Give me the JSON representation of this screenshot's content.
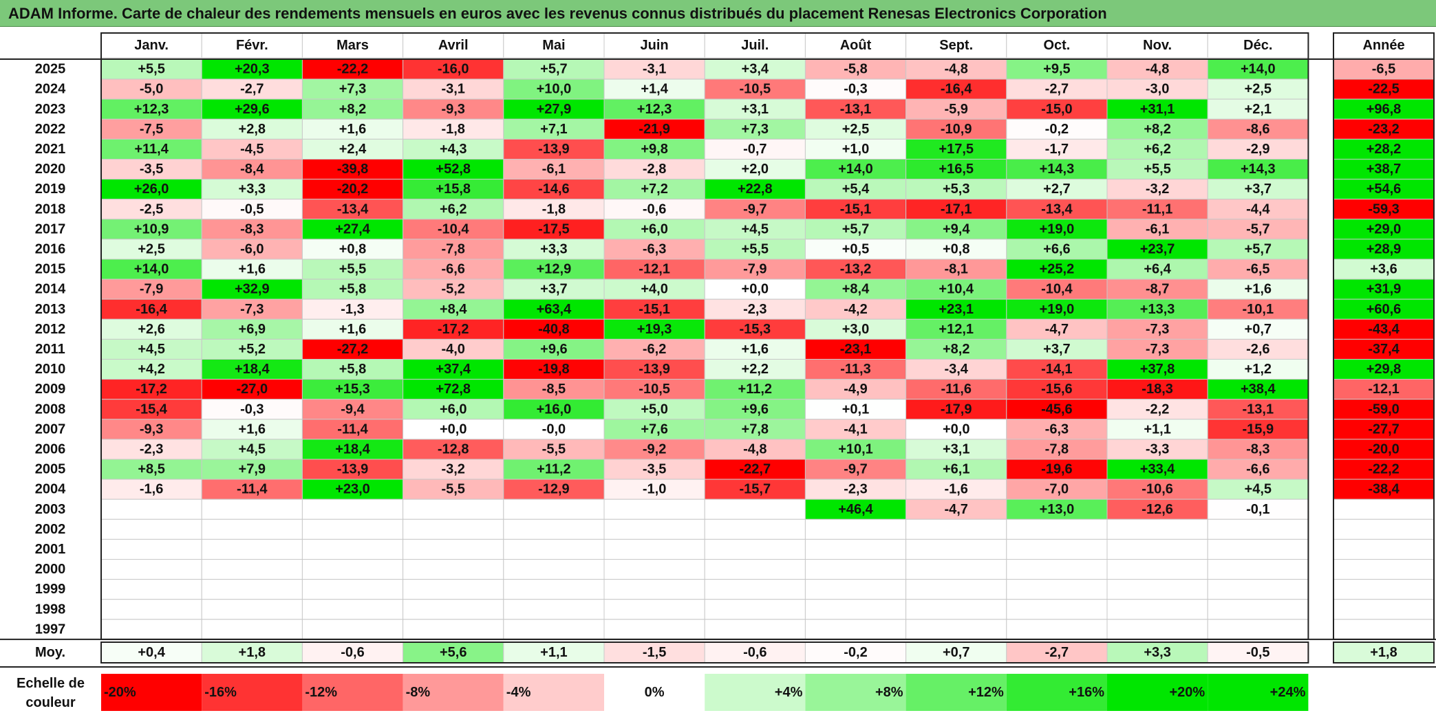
{
  "title": "ADAM Informe. Carte de chaleur des rendements mensuels en euros avec les revenus connus distribués du placement Renesas Electronics Corporation",
  "chart_data": {
    "type": "heatmap",
    "title": "ADAM Informe. Carte de chaleur des rendements mensuels en euros avec les revenus connus distribués du placement Renesas Electronics Corporation",
    "months": [
      "Janv.",
      "Févr.",
      "Mars",
      "Avril",
      "Mai",
      "Juin",
      "Juil.",
      "Août",
      "Sept.",
      "Oct.",
      "Nov.",
      "Déc."
    ],
    "year_header": "Année",
    "rows": [
      {
        "year": "2025",
        "months": [
          "+5,5",
          "+20,3",
          "-22,2",
          "-16,0",
          "+5,7",
          "-3,1",
          "+3,4",
          "-5,8",
          "-4,8",
          "+9,5",
          "-4,8",
          "+14,0"
        ],
        "annual": "-6,5"
      },
      {
        "year": "2024",
        "months": [
          "-5,0",
          "-2,7",
          "+7,3",
          "-3,1",
          "+10,0",
          "+1,4",
          "-10,5",
          "-0,3",
          "-16,4",
          "-2,7",
          "-3,0",
          "+2,5"
        ],
        "annual": "-22,5"
      },
      {
        "year": "2023",
        "months": [
          "+12,3",
          "+29,6",
          "+8,2",
          "-9,3",
          "+27,9",
          "+12,3",
          "+3,1",
          "-13,1",
          "-5,9",
          "-15,0",
          "+31,1",
          "+2,1"
        ],
        "annual": "+96,8"
      },
      {
        "year": "2022",
        "months": [
          "-7,5",
          "+2,8",
          "+1,6",
          "-1,8",
          "+7,1",
          "-21,9",
          "+7,3",
          "+2,5",
          "-10,9",
          "-0,2",
          "+8,2",
          "-8,6"
        ],
        "annual": "-23,2"
      },
      {
        "year": "2021",
        "months": [
          "+11,4",
          "-4,5",
          "+2,4",
          "+4,3",
          "-13,9",
          "+9,8",
          "-0,7",
          "+1,0",
          "+17,5",
          "-1,7",
          "+6,2",
          "-2,9"
        ],
        "annual": "+28,2"
      },
      {
        "year": "2020",
        "months": [
          "-3,5",
          "-8,4",
          "-39,8",
          "+52,8",
          "-6,1",
          "-2,8",
          "+2,0",
          "+14,0",
          "+16,5",
          "+14,3",
          "+5,5",
          "+14,3"
        ],
        "annual": "+38,7"
      },
      {
        "year": "2019",
        "months": [
          "+26,0",
          "+3,3",
          "-20,2",
          "+15,8",
          "-14,6",
          "+7,2",
          "+22,8",
          "+5,4",
          "+5,3",
          "+2,7",
          "-3,2",
          "+3,7"
        ],
        "annual": "+54,6"
      },
      {
        "year": "2018",
        "months": [
          "-2,5",
          "-0,5",
          "-13,4",
          "+6,2",
          "-1,8",
          "-0,6",
          "-9,7",
          "-15,1",
          "-17,1",
          "-13,4",
          "-11,1",
          "-4,4"
        ],
        "annual": "-59,3"
      },
      {
        "year": "2017",
        "months": [
          "+10,9",
          "-8,3",
          "+27,4",
          "-10,4",
          "-17,5",
          "+6,0",
          "+4,5",
          "+5,7",
          "+9,4",
          "+19,0",
          "-6,1",
          "-5,7"
        ],
        "annual": "+29,0"
      },
      {
        "year": "2016",
        "months": [
          "+2,5",
          "-6,0",
          "+0,8",
          "-7,8",
          "+3,3",
          "-6,3",
          "+5,5",
          "+0,5",
          "+0,8",
          "+6,6",
          "+23,7",
          "+5,7"
        ],
        "annual": "+28,9"
      },
      {
        "year": "2015",
        "months": [
          "+14,0",
          "+1,6",
          "+5,5",
          "-6,6",
          "+12,9",
          "-12,1",
          "-7,9",
          "-13,2",
          "-8,1",
          "+25,2",
          "+6,4",
          "-6,5"
        ],
        "annual": "+3,6"
      },
      {
        "year": "2014",
        "months": [
          "-7,9",
          "+32,9",
          "+5,8",
          "-5,2",
          "+3,7",
          "+4,0",
          "+0,0",
          "+8,4",
          "+10,4",
          "-10,4",
          "-8,7",
          "+1,6"
        ],
        "annual": "+31,9"
      },
      {
        "year": "2013",
        "months": [
          "-16,4",
          "-7,3",
          "-1,3",
          "+8,4",
          "+63,4",
          "-15,1",
          "-2,3",
          "-4,2",
          "+23,1",
          "+19,0",
          "+13,3",
          "-10,1"
        ],
        "annual": "+60,6"
      },
      {
        "year": "2012",
        "months": [
          "+2,6",
          "+6,9",
          "+1,6",
          "-17,2",
          "-40,8",
          "+19,3",
          "-15,3",
          "+3,0",
          "+12,1",
          "-4,7",
          "-7,3",
          "+0,7"
        ],
        "annual": "-43,4"
      },
      {
        "year": "2011",
        "months": [
          "+4,5",
          "+5,2",
          "-27,2",
          "-4,0",
          "+9,6",
          "-6,2",
          "+1,6",
          "-23,1",
          "+8,2",
          "+3,7",
          "-7,3",
          "-2,6"
        ],
        "annual": "-37,4"
      },
      {
        "year": "2010",
        "months": [
          "+4,2",
          "+18,4",
          "+5,8",
          "+37,4",
          "-19,8",
          "-13,9",
          "+2,2",
          "-11,3",
          "-3,4",
          "-14,1",
          "+37,8",
          "+1,2"
        ],
        "annual": "+29,8"
      },
      {
        "year": "2009",
        "months": [
          "-17,2",
          "-27,0",
          "+15,3",
          "+72,8",
          "-8,5",
          "-10,5",
          "+11,2",
          "-4,9",
          "-11,6",
          "-15,6",
          "-18,3",
          "+38,4"
        ],
        "annual": "-12,1"
      },
      {
        "year": "2008",
        "months": [
          "-15,4",
          "-0,3",
          "-9,4",
          "+6,0",
          "+16,0",
          "+5,0",
          "+9,6",
          "+0,1",
          "-17,9",
          "-45,6",
          "-2,2",
          "-13,1"
        ],
        "annual": "-59,0"
      },
      {
        "year": "2007",
        "months": [
          "-9,3",
          "+1,6",
          "-11,4",
          "+0,0",
          "-0,0",
          "+7,6",
          "+7,8",
          "-4,1",
          "+0,0",
          "-6,3",
          "+1,1",
          "-15,9"
        ],
        "annual": "-27,7"
      },
      {
        "year": "2006",
        "months": [
          "-2,3",
          "+4,5",
          "+18,4",
          "-12,8",
          "-5,5",
          "-9,2",
          "-4,8",
          "+10,1",
          "+3,1",
          "-7,8",
          "-3,3",
          "-8,3"
        ],
        "annual": "-20,0"
      },
      {
        "year": "2005",
        "months": [
          "+8,5",
          "+7,9",
          "-13,9",
          "-3,2",
          "+11,2",
          "-3,5",
          "-22,7",
          "-9,7",
          "+6,1",
          "-19,6",
          "+33,4",
          "-6,6"
        ],
        "annual": "-22,2"
      },
      {
        "year": "2004",
        "months": [
          "-1,6",
          "-11,4",
          "+23,0",
          "-5,5",
          "-12,9",
          "-1,0",
          "-15,7",
          "-2,3",
          "-1,6",
          "-7,0",
          "-10,6",
          "+4,5"
        ],
        "annual": "-38,4"
      },
      {
        "year": "2003",
        "months": [
          "",
          "",
          "",
          "",
          "",
          "",
          "",
          "+46,4",
          "-4,7",
          "+13,0",
          "-12,6",
          "-0,1"
        ],
        "annual": ""
      },
      {
        "year": "2002",
        "months": [
          "",
          "",
          "",
          "",
          "",
          "",
          "",
          "",
          "",
          "",
          "",
          ""
        ],
        "annual": ""
      },
      {
        "year": "2001",
        "months": [
          "",
          "",
          "",
          "",
          "",
          "",
          "",
          "",
          "",
          "",
          "",
          ""
        ],
        "annual": ""
      },
      {
        "year": "2000",
        "months": [
          "",
          "",
          "",
          "",
          "",
          "",
          "",
          "",
          "",
          "",
          "",
          ""
        ],
        "annual": ""
      },
      {
        "year": "1999",
        "months": [
          "",
          "",
          "",
          "",
          "",
          "",
          "",
          "",
          "",
          "",
          "",
          ""
        ],
        "annual": ""
      },
      {
        "year": "1998",
        "months": [
          "",
          "",
          "",
          "",
          "",
          "",
          "",
          "",
          "",
          "",
          "",
          ""
        ],
        "annual": ""
      },
      {
        "year": "1997",
        "months": [
          "",
          "",
          "",
          "",
          "",
          "",
          "",
          "",
          "",
          "",
          "",
          ""
        ],
        "annual": ""
      }
    ],
    "average": {
      "label": "Moy.",
      "months": [
        "+0,4",
        "+1,8",
        "-0,6",
        "+5,6",
        "+1,1",
        "-1,5",
        "-0,6",
        "-0,2",
        "+0,7",
        "-2,7",
        "+3,3",
        "-0,5"
      ],
      "annual": "+1,8"
    },
    "legend": {
      "title_line1": "Echelle de",
      "title_line2": "couleur",
      "steps": [
        "-20%",
        "-16%",
        "-12%",
        "-8%",
        "-4%",
        "0%",
        "+4%",
        "+8%",
        "+12%",
        "+16%",
        "+20%",
        "+24%"
      ]
    },
    "colors": {
      "negative_max": "#ff0000",
      "neutral": "#ffffff",
      "positive_max": "#00e600",
      "title_bar": "#7cc87a"
    }
  }
}
